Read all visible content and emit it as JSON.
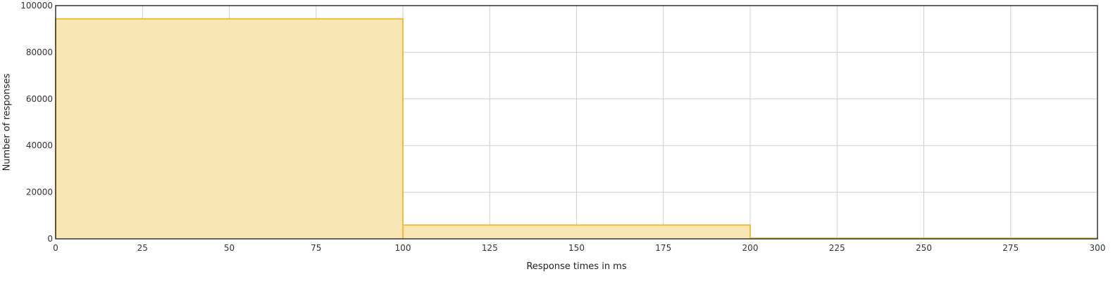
{
  "chart_data": {
    "type": "bar",
    "subtype": "histogram",
    "title": "",
    "xlabel": "Response times in ms",
    "ylabel": "Number of responses",
    "xlim": [
      0,
      300
    ],
    "ylim": [
      0,
      100000
    ],
    "x_ticks": [
      0,
      25,
      50,
      75,
      100,
      125,
      150,
      175,
      200,
      225,
      250,
      275,
      300
    ],
    "y_ticks": [
      0,
      20000,
      40000,
      60000,
      80000,
      100000
    ],
    "grid": true,
    "legend": "none",
    "bins": [
      {
        "x_start": 0,
        "x_end": 100,
        "value": 94300
      },
      {
        "x_start": 100,
        "x_end": 200,
        "value": 5900
      },
      {
        "x_start": 200,
        "x_end": 300,
        "value": 250
      }
    ],
    "colors": {
      "bar_fill": "#f7e4b0",
      "bar_stroke": "#edbd3e",
      "grid": "#d0d0d0",
      "axis": "#333333"
    }
  }
}
